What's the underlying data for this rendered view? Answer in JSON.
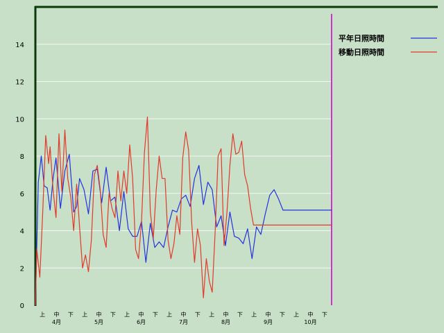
{
  "chart_data": {
    "type": "line",
    "title": "",
    "xlabel": "",
    "ylabel": "",
    "ylim": [
      0,
      16
    ],
    "y_ticks": [
      0,
      2,
      4,
      6,
      8,
      10,
      12,
      14
    ],
    "grid": true,
    "legend_position": "top-right",
    "months": [
      "4月",
      "5月",
      "6月",
      "7月",
      "8月",
      "9月",
      "10月"
    ],
    "dekads": [
      "上",
      "中",
      "下"
    ],
    "series": [
      {
        "name": "平年日照時間",
        "color": "#2233dd",
        "x": [
          0,
          2,
          4,
          6,
          8,
          10,
          12,
          14,
          17,
          20,
          23,
          26,
          28,
          30,
          33,
          36,
          39,
          42,
          45,
          48,
          51,
          54,
          57,
          60,
          63,
          66,
          69,
          72,
          75,
          78,
          81,
          84,
          87,
          90,
          93,
          96,
          99,
          102,
          105,
          108,
          111,
          114,
          117,
          120,
          123,
          126,
          129,
          132,
          135,
          138,
          141,
          144,
          147,
          150,
          153,
          156,
          159,
          162,
          165,
          168,
          171,
          174,
          177,
          180,
          183,
          186,
          189,
          192,
          195,
          198,
          201
        ],
        "values": [
          0,
          6.6,
          8.0,
          6.4,
          6.3,
          5.1,
          6.8,
          7.9,
          5.2,
          7.2,
          8.1,
          5.0,
          5.3,
          6.8,
          6.2,
          4.9,
          7.2,
          7.3,
          5.5,
          7.4,
          5.6,
          5.8,
          4.0,
          6.1,
          4.1,
          3.7,
          3.7,
          4.5,
          2.3,
          4.4,
          3.1,
          3.4,
          3.1,
          4.2,
          5.1,
          5.0,
          5.7,
          5.9,
          5.3,
          6.8,
          7.5,
          5.4,
          6.6,
          6.2,
          4.2,
          4.8,
          3.2,
          5.0,
          3.7,
          3.6,
          3.3,
          4.1,
          2.5,
          4.2,
          3.8,
          4.9,
          5.9,
          6.2,
          5.7,
          5.1,
          5.1,
          5.1,
          5.1,
          5.1,
          5.1,
          5.1,
          5.1,
          5.1,
          5.1,
          5.1,
          5.1
        ]
      },
      {
        "name": "移動日照時間",
        "color": "#e03a2a",
        "x": [
          0,
          1,
          3,
          5,
          7,
          9,
          10,
          12,
          14,
          16,
          18,
          20,
          22,
          24,
          26,
          28,
          30,
          32,
          34,
          36,
          38,
          40,
          42,
          44,
          46,
          48,
          50,
          52,
          54,
          56,
          58,
          60,
          62,
          64,
          66,
          68,
          70,
          72,
          74,
          76,
          78,
          80,
          82,
          84,
          86,
          88,
          90,
          92,
          94,
          96,
          98,
          100,
          102,
          104,
          106,
          108,
          110,
          112,
          114,
          116,
          118,
          120,
          122,
          124,
          126,
          128,
          130,
          132,
          134,
          136,
          138,
          140,
          142,
          144,
          146,
          148,
          150,
          152,
          154,
          156,
          158,
          160,
          162,
          164,
          166,
          168,
          170,
          172,
          174,
          176,
          178,
          180,
          182,
          184,
          186,
          188,
          190,
          192,
          194,
          196,
          198,
          200,
          201
        ],
        "values": [
          0,
          3.0,
          1.5,
          5.0,
          9.1,
          7.6,
          8.5,
          6.2,
          4.7,
          9.2,
          6.1,
          9.4,
          6.8,
          5.8,
          4.0,
          6.5,
          4.2,
          2.0,
          2.7,
          1.8,
          3.5,
          7.0,
          7.5,
          6.2,
          3.8,
          3.1,
          6.0,
          5.2,
          4.7,
          7.2,
          5.6,
          7.2,
          6.0,
          8.6,
          6.8,
          3.0,
          2.5,
          4.5,
          8.2,
          10.1,
          5.0,
          3.6,
          6.2,
          8.0,
          6.8,
          6.8,
          3.5,
          2.5,
          3.3,
          4.8,
          3.8,
          7.9,
          9.3,
          8.3,
          4.5,
          2.3,
          4.1,
          3.2,
          0.4,
          2.5,
          1.3,
          0.7,
          4.0,
          8.0,
          8.4,
          3.2,
          5.0,
          7.5,
          9.2,
          8.1,
          8.2,
          8.8,
          7.0,
          6.4,
          5.2,
          4.3,
          4.3,
          4.3,
          4.3,
          4.3,
          4.3,
          4.3,
          4.3,
          4.3,
          4.3,
          4.3,
          4.3,
          4.3,
          4.3,
          4.3,
          4.3,
          4.3,
          4.3,
          4.3,
          4.3,
          4.3,
          4.3,
          4.3,
          4.3,
          4.3,
          4.3,
          4.3,
          4.3
        ]
      }
    ]
  }
}
